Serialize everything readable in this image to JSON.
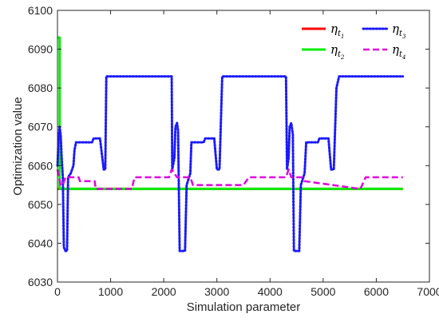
{
  "chart_data": {
    "type": "line",
    "xlabel": "Simulation parameter",
    "ylabel": "Optimization value",
    "xlim": [
      0,
      7000
    ],
    "ylim": [
      6030,
      6100
    ],
    "xticks": [
      0,
      1000,
      2000,
      3000,
      4000,
      5000,
      6000,
      7000
    ],
    "yticks": [
      6030,
      6040,
      6050,
      6060,
      6070,
      6080,
      6090,
      6100
    ],
    "grid": false,
    "legend_position": "top-right",
    "series": [
      {
        "name": "η_{t_1}",
        "color": "#ff0000",
        "style": "solid",
        "x": [
          0,
          6500
        ],
        "y": [
          6054,
          6054
        ]
      },
      {
        "name": "η_{t_2}",
        "color": "#00ee00",
        "style": "solid",
        "x": [
          0,
          40,
          40,
          6500
        ],
        "y": [
          6093,
          6093,
          6054,
          6054
        ]
      },
      {
        "name": "η_{t_3}",
        "color": "#1a1aff",
        "style": "dotted",
        "x": [
          0,
          20,
          40,
          60,
          80,
          100,
          120,
          150,
          180,
          200,
          250,
          300,
          320,
          350,
          400,
          650,
          680,
          800,
          870,
          900,
          920,
          2150,
          2160,
          2200,
          2220,
          2250,
          2270,
          2300,
          2350,
          2400,
          2430,
          2500,
          2520,
          2750,
          2780,
          2950,
          3000,
          3050,
          3100,
          4300,
          4320,
          4350,
          4370,
          4400,
          4430,
          4450,
          4500,
          4550,
          4580,
          4650,
          4680,
          4900,
          4930,
          5100,
          5150,
          5200,
          5250,
          5300,
          6500
        ],
        "y": [
          6060,
          6067,
          6070,
          6068,
          6062,
          6057,
          6039,
          6038,
          6038,
          6057,
          6058,
          6060,
          6064,
          6066,
          6066,
          6066,
          6067,
          6067,
          6059,
          6059,
          6083,
          6083,
          6059,
          6062,
          6070,
          6071,
          6069,
          6038,
          6038,
          6038,
          6055,
          6058,
          6066,
          6066,
          6067,
          6067,
          6059,
          6059,
          6083,
          6083,
          6059,
          6062,
          6070,
          6071,
          6068,
          6038,
          6038,
          6038,
          6055,
          6058,
          6066,
          6066,
          6067,
          6067,
          6059,
          6059,
          6080,
          6083,
          6083
        ]
      },
      {
        "name": "η_{t_4}",
        "color": "#e100e1",
        "style": "dashed",
        "x": [
          0,
          30,
          60,
          100,
          150,
          400,
          420,
          700,
          720,
          1400,
          1450,
          2100,
          2150,
          2200,
          2250,
          2300,
          2500,
          2550,
          3500,
          3600,
          4300,
          4350,
          4400,
          4600,
          4650,
          5700,
          5800,
          6500
        ],
        "y": [
          6059,
          6057,
          6055,
          6055,
          6057,
          6057,
          6056,
          6056,
          6054,
          6054,
          6057,
          6057,
          6059,
          6058,
          6057,
          6057,
          6057,
          6055,
          6055,
          6057,
          6057,
          6059,
          6057,
          6057,
          6056,
          6054,
          6057,
          6057
        ]
      }
    ]
  }
}
